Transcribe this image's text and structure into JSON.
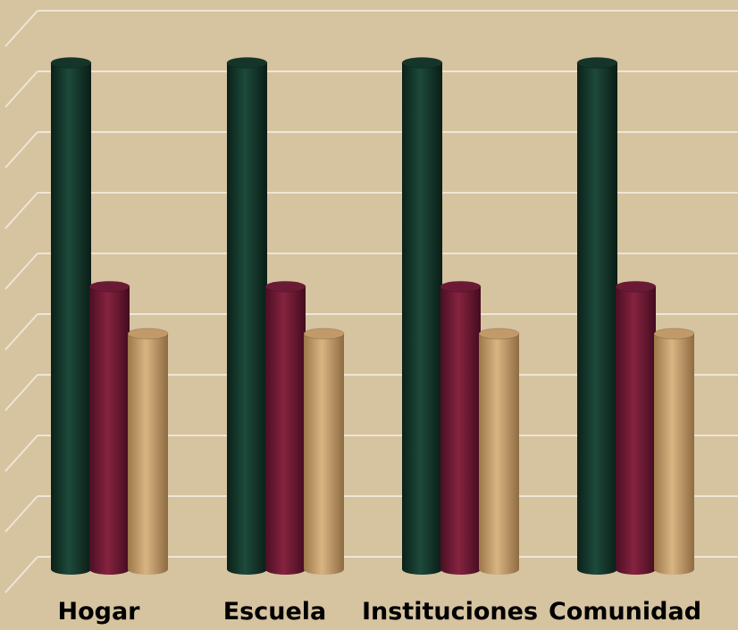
{
  "chart_data": {
    "type": "bar",
    "style": "3d-cylinder",
    "categories": [
      "Hogar",
      "Escuela",
      "Instituciones",
      "Comunidad"
    ],
    "series": [
      {
        "color": "#14352a",
        "values": [
          8.6,
          8.6,
          8.6,
          8.6
        ]
      },
      {
        "color": "#6b1a35",
        "values": [
          4.8,
          4.8,
          4.8,
          4.8
        ]
      },
      {
        "color": "#c19a68",
        "values": [
          4.0,
          4.0,
          4.0,
          4.0
        ]
      }
    ],
    "ylim": [
      0,
      9
    ],
    "grid": true,
    "legend": "none",
    "title": "",
    "xlabel": "",
    "ylabel": ""
  },
  "colors": {
    "background": "#d6c3a0",
    "gridline": "#eee6d6"
  }
}
